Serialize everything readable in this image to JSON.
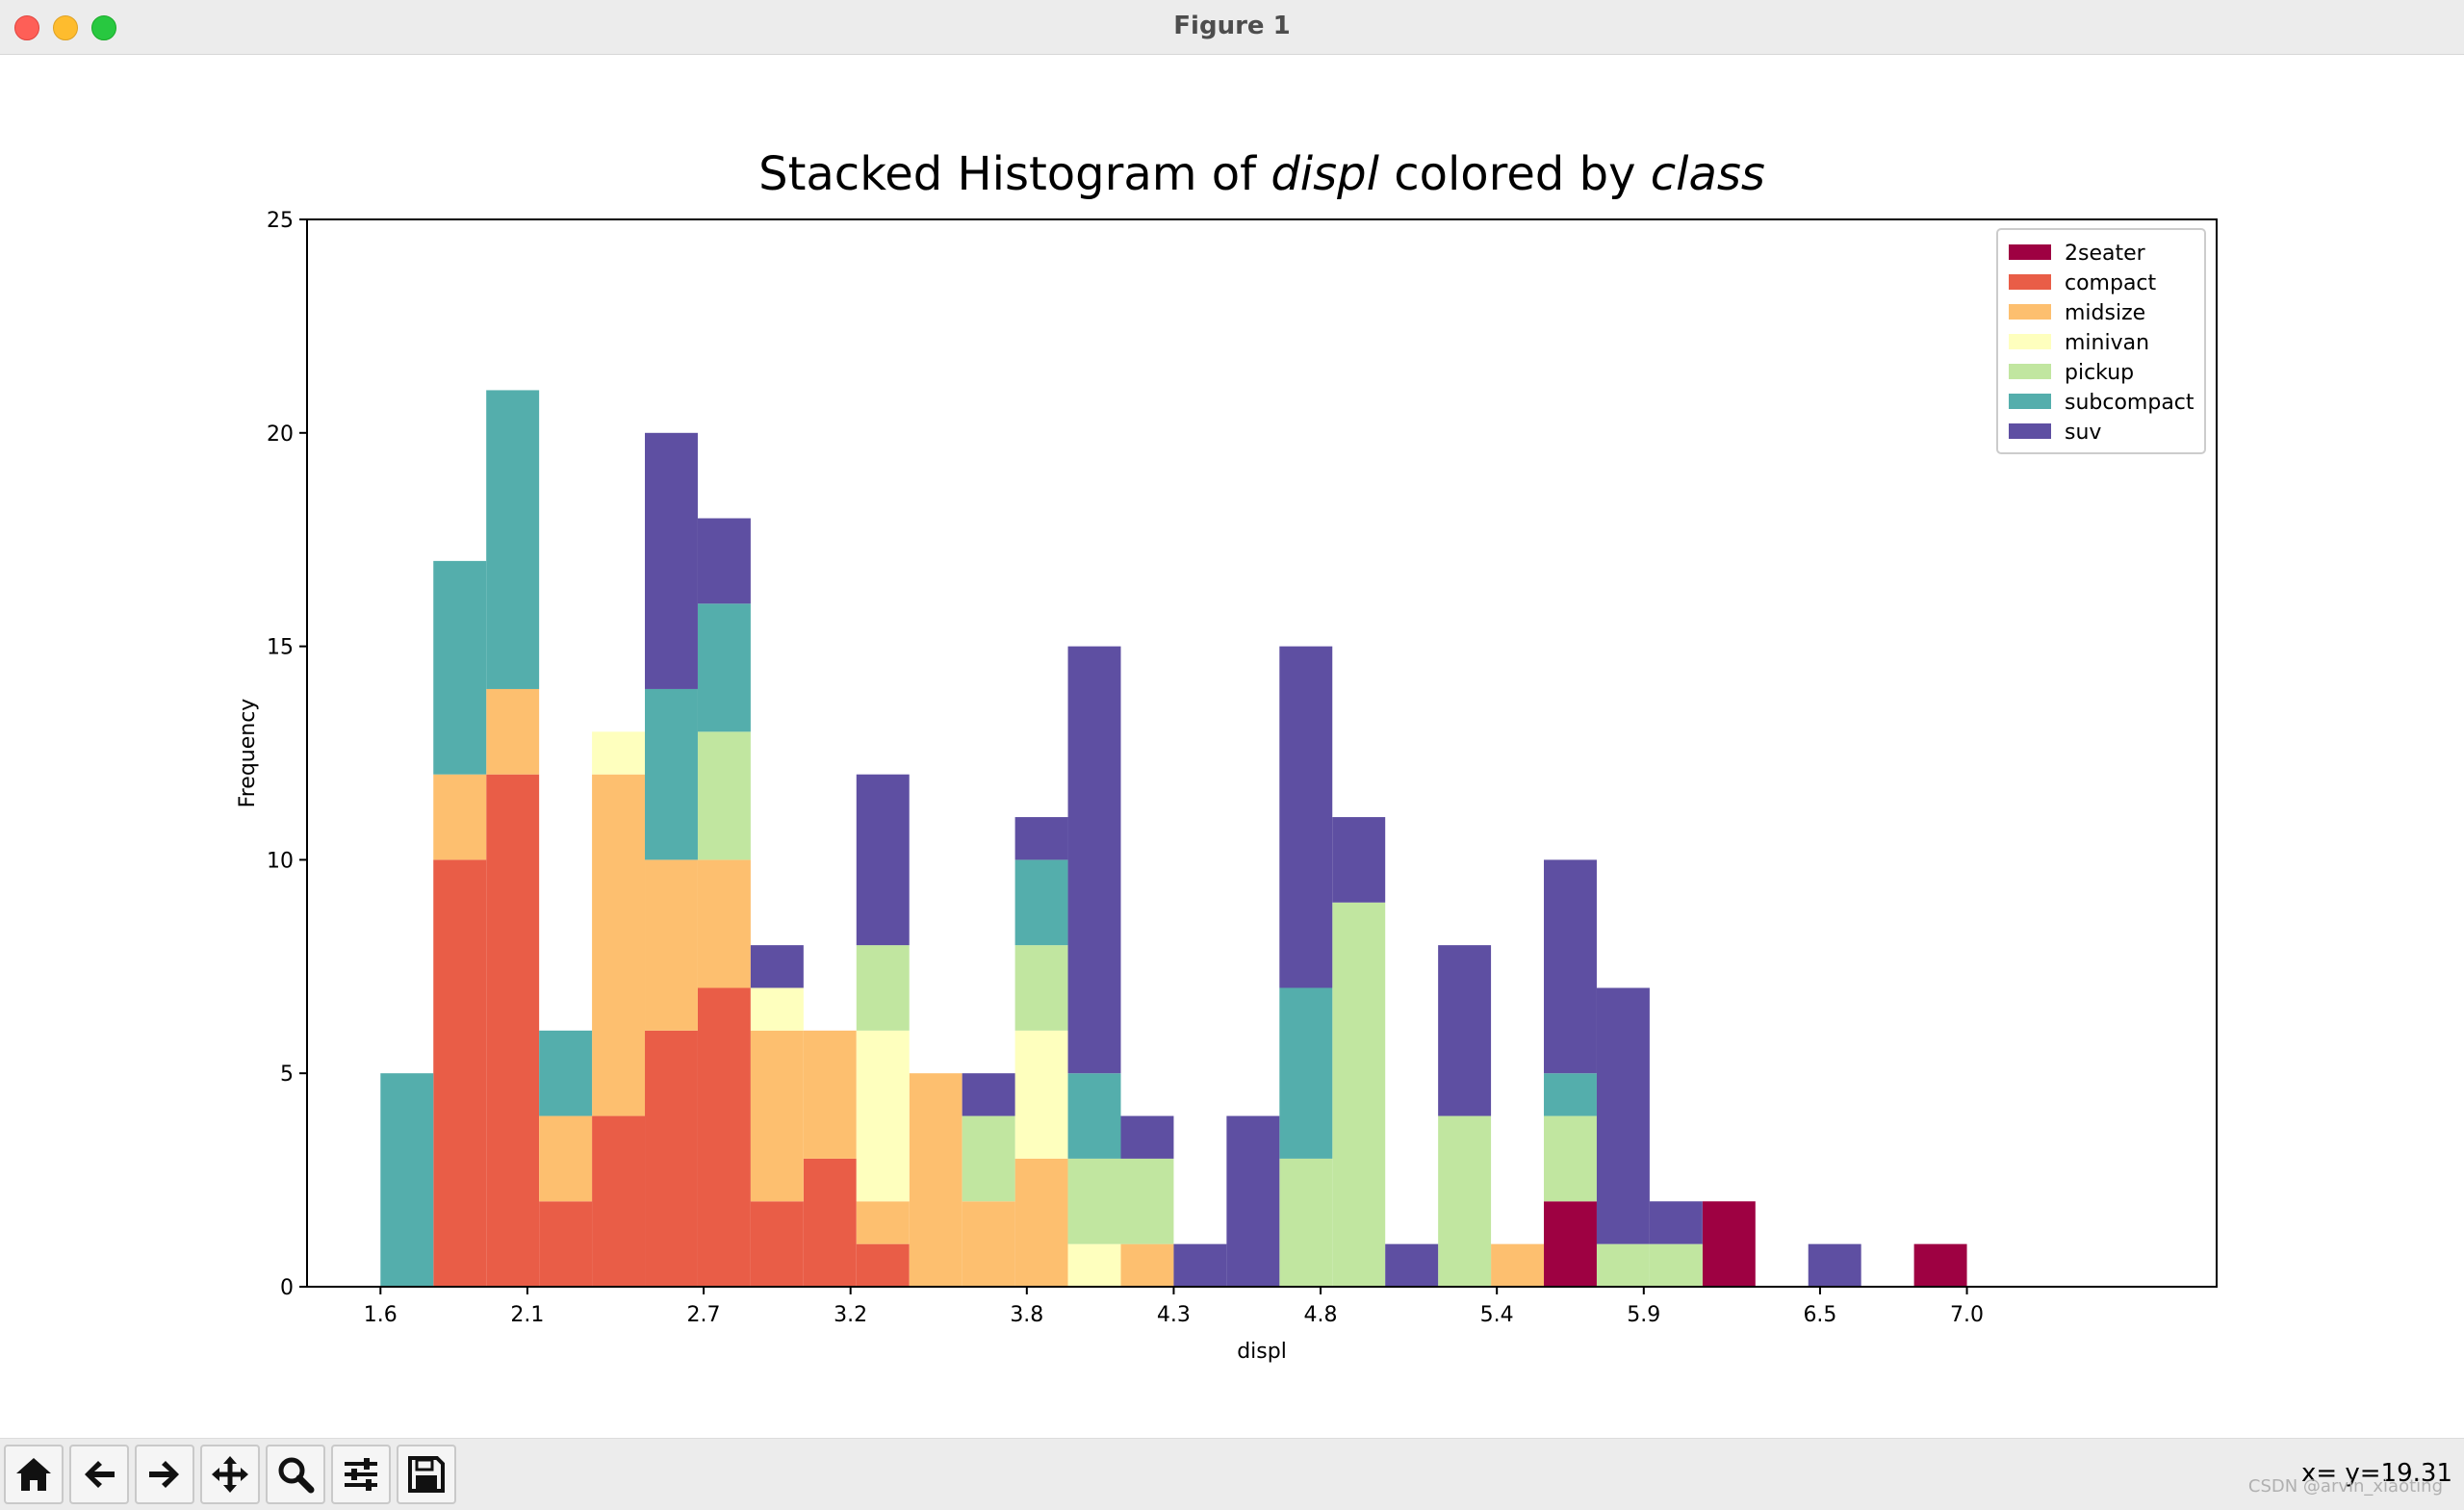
{
  "window": {
    "title": "Figure 1"
  },
  "toolbar": {
    "buttons": [
      {
        "name": "home-button",
        "icon": "home-icon"
      },
      {
        "name": "back-button",
        "icon": "arrow-left-icon"
      },
      {
        "name": "forward-button",
        "icon": "arrow-right-icon"
      },
      {
        "name": "pan-button",
        "icon": "move-icon"
      },
      {
        "name": "zoom-button",
        "icon": "search-icon"
      },
      {
        "name": "configure-button",
        "icon": "sliders-icon"
      },
      {
        "name": "save-button",
        "icon": "save-icon"
      }
    ],
    "coords": "x= y=19.31"
  },
  "watermark": "CSDN @arvin_xiaoting",
  "chart_data": {
    "type": "bar",
    "title_parts": [
      {
        "text": "Stacked Histogram of ",
        "italic": false
      },
      {
        "text": "displ",
        "italic": true
      },
      {
        "text": " colored by ",
        "italic": false
      },
      {
        "text": "class",
        "italic": true
      }
    ],
    "xlabel": "displ",
    "ylabel": "Frequency",
    "xlim": [
      1.35,
      7.85
    ],
    "ylim": [
      0,
      25
    ],
    "xticks": [
      "1.6",
      "2.1",
      "2.7",
      "3.2",
      "3.8",
      "4.3",
      "4.8",
      "5.4",
      "5.9",
      "6.5",
      "7.0"
    ],
    "yticks": [
      0,
      5,
      10,
      15,
      20,
      25
    ],
    "stacked": true,
    "bins": 30,
    "x_start": 1.6,
    "x_end": 7.0,
    "legend_position": "top-right",
    "series": [
      {
        "name": "2seater",
        "color": "#9e0142",
        "values": [
          0,
          0,
          0,
          0,
          0,
          0,
          0,
          0,
          0,
          0,
          0,
          0,
          0,
          0,
          0,
          0,
          0,
          0,
          0,
          0,
          0,
          0,
          2,
          0,
          0,
          2,
          0,
          0,
          0,
          1
        ]
      },
      {
        "name": "compact",
        "color": "#e95d47",
        "values": [
          0,
          10,
          12,
          2,
          4,
          6,
          7,
          2,
          3,
          1,
          0,
          0,
          0,
          0,
          0,
          0,
          0,
          0,
          0,
          0,
          0,
          0,
          0,
          0,
          0,
          0,
          0,
          0,
          0,
          0
        ]
      },
      {
        "name": "midsize",
        "color": "#fdbf6f",
        "values": [
          0,
          2,
          2,
          2,
          8,
          4,
          3,
          4,
          3,
          1,
          5,
          2,
          3,
          0,
          1,
          0,
          0,
          0,
          0,
          0,
          0,
          1,
          0,
          0,
          0,
          0,
          0,
          0,
          0,
          0
        ]
      },
      {
        "name": "minivan",
        "color": "#feffbe",
        "values": [
          0,
          0,
          0,
          0,
          1,
          0,
          0,
          1,
          0,
          4,
          0,
          0,
          3,
          1,
          0,
          0,
          0,
          0,
          0,
          0,
          0,
          0,
          0,
          0,
          0,
          0,
          0,
          0,
          0,
          0
        ]
      },
      {
        "name": "pickup",
        "color": "#c1e6a0",
        "values": [
          0,
          0,
          0,
          0,
          0,
          0,
          3,
          0,
          0,
          2,
          0,
          2,
          2,
          2,
          2,
          0,
          0,
          3,
          9,
          0,
          4,
          0,
          2,
          1,
          1,
          0,
          0,
          0,
          0,
          0
        ]
      },
      {
        "name": "subcompact",
        "color": "#54aeac",
        "values": [
          5,
          5,
          7,
          2,
          0,
          4,
          3,
          0,
          0,
          0,
          0,
          0,
          2,
          2,
          0,
          0,
          0,
          4,
          0,
          0,
          0,
          0,
          1,
          0,
          0,
          0,
          0,
          0,
          0,
          0
        ]
      },
      {
        "name": "suv",
        "color": "#5e4fa2",
        "values": [
          0,
          0,
          0,
          0,
          0,
          6,
          2,
          1,
          0,
          4,
          0,
          1,
          1,
          10,
          1,
          1,
          4,
          8,
          2,
          1,
          4,
          0,
          5,
          6,
          1,
          0,
          0,
          1,
          0,
          0
        ]
      }
    ]
  }
}
